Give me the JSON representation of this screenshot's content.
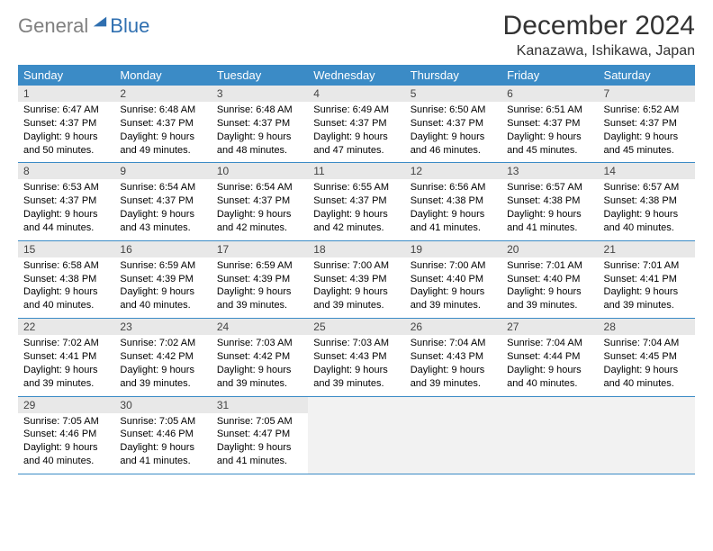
{
  "logo": {
    "general": "General",
    "blue": "Blue"
  },
  "title": "December 2024",
  "location": "Kanazawa, Ishikawa, Japan",
  "colors": {
    "header_bg": "#3b8bc6",
    "header_text": "#ffffff",
    "daynum_bg": "#e8e8e8",
    "border": "#3b8bc6",
    "logo_gray": "#808080",
    "logo_blue": "#2f6fb0"
  },
  "weekdays": [
    "Sunday",
    "Monday",
    "Tuesday",
    "Wednesday",
    "Thursday",
    "Friday",
    "Saturday"
  ],
  "weeks": [
    [
      {
        "d": "1",
        "sr": "Sunrise: 6:47 AM",
        "ss": "Sunset: 4:37 PM",
        "dl1": "Daylight: 9 hours",
        "dl2": "and 50 minutes."
      },
      {
        "d": "2",
        "sr": "Sunrise: 6:48 AM",
        "ss": "Sunset: 4:37 PM",
        "dl1": "Daylight: 9 hours",
        "dl2": "and 49 minutes."
      },
      {
        "d": "3",
        "sr": "Sunrise: 6:48 AM",
        "ss": "Sunset: 4:37 PM",
        "dl1": "Daylight: 9 hours",
        "dl2": "and 48 minutes."
      },
      {
        "d": "4",
        "sr": "Sunrise: 6:49 AM",
        "ss": "Sunset: 4:37 PM",
        "dl1": "Daylight: 9 hours",
        "dl2": "and 47 minutes."
      },
      {
        "d": "5",
        "sr": "Sunrise: 6:50 AM",
        "ss": "Sunset: 4:37 PM",
        "dl1": "Daylight: 9 hours",
        "dl2": "and 46 minutes."
      },
      {
        "d": "6",
        "sr": "Sunrise: 6:51 AM",
        "ss": "Sunset: 4:37 PM",
        "dl1": "Daylight: 9 hours",
        "dl2": "and 45 minutes."
      },
      {
        "d": "7",
        "sr": "Sunrise: 6:52 AM",
        "ss": "Sunset: 4:37 PM",
        "dl1": "Daylight: 9 hours",
        "dl2": "and 45 minutes."
      }
    ],
    [
      {
        "d": "8",
        "sr": "Sunrise: 6:53 AM",
        "ss": "Sunset: 4:37 PM",
        "dl1": "Daylight: 9 hours",
        "dl2": "and 44 minutes."
      },
      {
        "d": "9",
        "sr": "Sunrise: 6:54 AM",
        "ss": "Sunset: 4:37 PM",
        "dl1": "Daylight: 9 hours",
        "dl2": "and 43 minutes."
      },
      {
        "d": "10",
        "sr": "Sunrise: 6:54 AM",
        "ss": "Sunset: 4:37 PM",
        "dl1": "Daylight: 9 hours",
        "dl2": "and 42 minutes."
      },
      {
        "d": "11",
        "sr": "Sunrise: 6:55 AM",
        "ss": "Sunset: 4:37 PM",
        "dl1": "Daylight: 9 hours",
        "dl2": "and 42 minutes."
      },
      {
        "d": "12",
        "sr": "Sunrise: 6:56 AM",
        "ss": "Sunset: 4:38 PM",
        "dl1": "Daylight: 9 hours",
        "dl2": "and 41 minutes."
      },
      {
        "d": "13",
        "sr": "Sunrise: 6:57 AM",
        "ss": "Sunset: 4:38 PM",
        "dl1": "Daylight: 9 hours",
        "dl2": "and 41 minutes."
      },
      {
        "d": "14",
        "sr": "Sunrise: 6:57 AM",
        "ss": "Sunset: 4:38 PM",
        "dl1": "Daylight: 9 hours",
        "dl2": "and 40 minutes."
      }
    ],
    [
      {
        "d": "15",
        "sr": "Sunrise: 6:58 AM",
        "ss": "Sunset: 4:38 PM",
        "dl1": "Daylight: 9 hours",
        "dl2": "and 40 minutes."
      },
      {
        "d": "16",
        "sr": "Sunrise: 6:59 AM",
        "ss": "Sunset: 4:39 PM",
        "dl1": "Daylight: 9 hours",
        "dl2": "and 40 minutes."
      },
      {
        "d": "17",
        "sr": "Sunrise: 6:59 AM",
        "ss": "Sunset: 4:39 PM",
        "dl1": "Daylight: 9 hours",
        "dl2": "and 39 minutes."
      },
      {
        "d": "18",
        "sr": "Sunrise: 7:00 AM",
        "ss": "Sunset: 4:39 PM",
        "dl1": "Daylight: 9 hours",
        "dl2": "and 39 minutes."
      },
      {
        "d": "19",
        "sr": "Sunrise: 7:00 AM",
        "ss": "Sunset: 4:40 PM",
        "dl1": "Daylight: 9 hours",
        "dl2": "and 39 minutes."
      },
      {
        "d": "20",
        "sr": "Sunrise: 7:01 AM",
        "ss": "Sunset: 4:40 PM",
        "dl1": "Daylight: 9 hours",
        "dl2": "and 39 minutes."
      },
      {
        "d": "21",
        "sr": "Sunrise: 7:01 AM",
        "ss": "Sunset: 4:41 PM",
        "dl1": "Daylight: 9 hours",
        "dl2": "and 39 minutes."
      }
    ],
    [
      {
        "d": "22",
        "sr": "Sunrise: 7:02 AM",
        "ss": "Sunset: 4:41 PM",
        "dl1": "Daylight: 9 hours",
        "dl2": "and 39 minutes."
      },
      {
        "d": "23",
        "sr": "Sunrise: 7:02 AM",
        "ss": "Sunset: 4:42 PM",
        "dl1": "Daylight: 9 hours",
        "dl2": "and 39 minutes."
      },
      {
        "d": "24",
        "sr": "Sunrise: 7:03 AM",
        "ss": "Sunset: 4:42 PM",
        "dl1": "Daylight: 9 hours",
        "dl2": "and 39 minutes."
      },
      {
        "d": "25",
        "sr": "Sunrise: 7:03 AM",
        "ss": "Sunset: 4:43 PM",
        "dl1": "Daylight: 9 hours",
        "dl2": "and 39 minutes."
      },
      {
        "d": "26",
        "sr": "Sunrise: 7:04 AM",
        "ss": "Sunset: 4:43 PM",
        "dl1": "Daylight: 9 hours",
        "dl2": "and 39 minutes."
      },
      {
        "d": "27",
        "sr": "Sunrise: 7:04 AM",
        "ss": "Sunset: 4:44 PM",
        "dl1": "Daylight: 9 hours",
        "dl2": "and 40 minutes."
      },
      {
        "d": "28",
        "sr": "Sunrise: 7:04 AM",
        "ss": "Sunset: 4:45 PM",
        "dl1": "Daylight: 9 hours",
        "dl2": "and 40 minutes."
      }
    ],
    [
      {
        "d": "29",
        "sr": "Sunrise: 7:05 AM",
        "ss": "Sunset: 4:46 PM",
        "dl1": "Daylight: 9 hours",
        "dl2": "and 40 minutes."
      },
      {
        "d": "30",
        "sr": "Sunrise: 7:05 AM",
        "ss": "Sunset: 4:46 PM",
        "dl1": "Daylight: 9 hours",
        "dl2": "and 41 minutes."
      },
      {
        "d": "31",
        "sr": "Sunrise: 7:05 AM",
        "ss": "Sunset: 4:47 PM",
        "dl1": "Daylight: 9 hours",
        "dl2": "and 41 minutes."
      },
      null,
      null,
      null,
      null
    ]
  ]
}
